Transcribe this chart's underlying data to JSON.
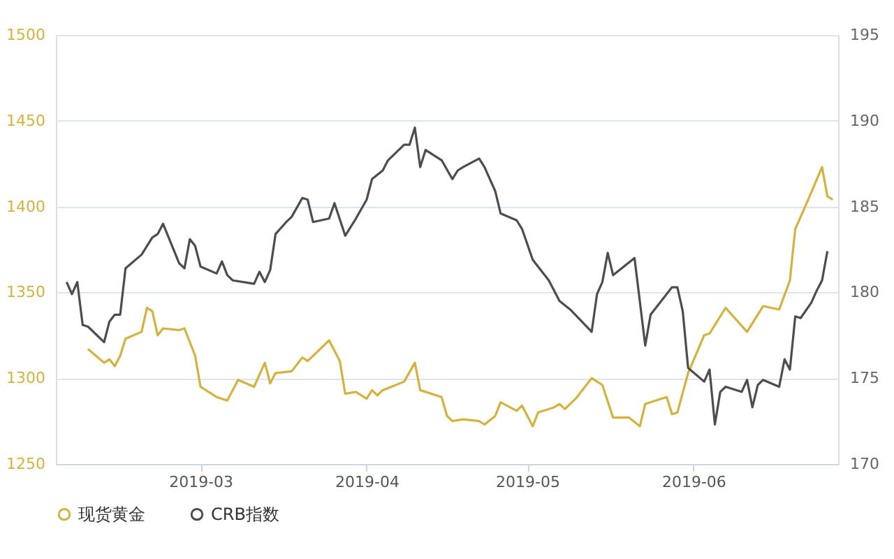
{
  "chart_data": {
    "type": "line",
    "legend": "bottom",
    "grid": "y",
    "marker": "none",
    "line_style": "solid",
    "xlim": [
      "2019-02-02",
      "2019-06-28"
    ],
    "xticks": [
      "2019-03",
      "2019-04",
      "2019-05",
      "2019-06"
    ],
    "ylim": [
      1250,
      1500
    ],
    "yticks": [
      1250,
      1300,
      1350,
      1400,
      1450,
      1500
    ],
    "y2lim": [
      170,
      195
    ],
    "y2ticks": [
      170,
      175,
      180,
      185,
      190,
      195
    ],
    "series": [
      {
        "name": "现货黄金",
        "color": "#d4b23c",
        "axis": "y",
        "x": [
          "2019-02-08",
          "2019-02-11",
          "2019-02-12",
          "2019-02-13",
          "2019-02-14",
          "2019-02-15",
          "2019-02-18",
          "2019-02-19",
          "2019-02-20",
          "2019-02-21",
          "2019-02-22",
          "2019-02-25",
          "2019-02-26",
          "2019-02-28",
          "2019-03-01",
          "2019-03-04",
          "2019-03-05",
          "2019-03-06",
          "2019-03-08",
          "2019-03-11",
          "2019-03-13",
          "2019-03-14",
          "2019-03-15",
          "2019-03-18",
          "2019-03-20",
          "2019-03-21",
          "2019-03-25",
          "2019-03-27",
          "2019-03-28",
          "2019-03-30",
          "2019-04-01",
          "2019-04-02",
          "2019-04-03",
          "2019-04-04",
          "2019-04-08",
          "2019-04-10",
          "2019-04-11",
          "2019-04-15",
          "2019-04-16",
          "2019-04-17",
          "2019-04-19",
          "2019-04-22",
          "2019-04-23",
          "2019-04-25",
          "2019-04-26",
          "2019-04-29",
          "2019-04-30",
          "2019-05-02",
          "2019-05-03",
          "2019-05-06",
          "2019-05-07",
          "2019-05-08",
          "2019-05-10",
          "2019-05-13",
          "2019-05-15",
          "2019-05-17",
          "2019-05-20",
          "2019-05-22",
          "2019-05-23",
          "2019-05-27",
          "2019-05-28",
          "2019-05-29",
          "2019-05-31",
          "2019-06-03",
          "2019-06-04",
          "2019-06-07",
          "2019-06-11",
          "2019-06-14",
          "2019-06-17",
          "2019-06-19",
          "2019-06-20",
          "2019-06-22",
          "2019-06-25",
          "2019-06-26",
          "2019-06-27"
        ],
        "values": [
          1317,
          1309,
          1311,
          1307,
          1313,
          1323,
          1327,
          1341,
          1339,
          1325,
          1329,
          1328,
          1329,
          1313,
          1295,
          1289,
          1288,
          1287,
          1299,
          1295,
          1309,
          1297,
          1303,
          1304,
          1312,
          1310,
          1322,
          1310,
          1291,
          1292,
          1288,
          1293,
          1290,
          1293,
          1298,
          1309,
          1293,
          1289,
          1278,
          1275,
          1276,
          1275,
          1273,
          1278,
          1286,
          1281,
          1284,
          1272,
          1280,
          1283,
          1285,
          1282,
          1288,
          1300,
          1296,
          1277,
          1277,
          1272,
          1285,
          1289,
          1279,
          1280,
          1303,
          1325,
          1326,
          1341,
          1327,
          1342,
          1340,
          1357,
          1387,
          1401,
          1423,
          1406,
          1404
        ]
      },
      {
        "name": "CRB指数",
        "color": "#4d4d4d",
        "axis": "y2",
        "x": [
          "2019-02-04",
          "2019-02-05",
          "2019-02-06",
          "2019-02-07",
          "2019-02-08",
          "2019-02-11",
          "2019-02-12",
          "2019-02-13",
          "2019-02-14",
          "2019-02-15",
          "2019-02-18",
          "2019-02-20",
          "2019-02-21",
          "2019-02-22",
          "2019-02-25",
          "2019-02-26",
          "2019-02-27",
          "2019-02-28",
          "2019-03-01",
          "2019-03-04",
          "2019-03-05",
          "2019-03-06",
          "2019-03-07",
          "2019-03-11",
          "2019-03-12",
          "2019-03-13",
          "2019-03-14",
          "2019-03-15",
          "2019-03-17",
          "2019-03-18",
          "2019-03-20",
          "2019-03-21",
          "2019-03-22",
          "2019-03-25",
          "2019-03-26",
          "2019-03-28",
          "2019-03-30",
          "2019-04-01",
          "2019-04-02",
          "2019-04-04",
          "2019-04-05",
          "2019-04-08",
          "2019-04-09",
          "2019-04-10",
          "2019-04-11",
          "2019-04-12",
          "2019-04-15",
          "2019-04-17",
          "2019-04-18",
          "2019-04-19",
          "2019-04-22",
          "2019-04-23",
          "2019-04-25",
          "2019-04-26",
          "2019-04-29",
          "2019-04-30",
          "2019-05-02",
          "2019-05-05",
          "2019-05-07",
          "2019-05-09",
          "2019-05-13",
          "2019-05-14",
          "2019-05-15",
          "2019-05-16",
          "2019-05-17",
          "2019-05-21",
          "2019-05-23",
          "2019-05-24",
          "2019-05-28",
          "2019-05-29",
          "2019-05-30",
          "2019-05-31",
          "2019-06-03",
          "2019-06-04",
          "2019-06-05",
          "2019-06-06",
          "2019-06-07",
          "2019-06-10",
          "2019-06-11",
          "2019-06-12",
          "2019-06-13",
          "2019-06-14",
          "2019-06-17",
          "2019-06-18",
          "2019-06-19",
          "2019-06-20",
          "2019-06-21",
          "2019-06-23",
          "2019-06-24",
          "2019-06-25",
          "2019-06-26"
        ],
        "values": [
          180.6,
          179.9,
          180.6,
          178.1,
          178.0,
          177.1,
          178.3,
          178.7,
          178.7,
          181.4,
          182.2,
          183.2,
          183.4,
          184.0,
          181.7,
          181.4,
          183.1,
          182.7,
          181.5,
          181.1,
          181.8,
          181.0,
          180.7,
          180.5,
          181.2,
          180.6,
          181.3,
          183.4,
          184.1,
          184.4,
          185.5,
          185.4,
          184.1,
          184.3,
          185.2,
          183.3,
          184.3,
          185.4,
          186.6,
          187.1,
          187.7,
          188.6,
          188.6,
          189.6,
          187.3,
          188.3,
          187.7,
          186.6,
          187.1,
          187.3,
          187.8,
          187.3,
          185.9,
          184.6,
          184.2,
          183.7,
          181.9,
          180.7,
          179.5,
          179.0,
          177.7,
          179.9,
          180.6,
          182.3,
          181.0,
          182.0,
          176.9,
          178.7,
          180.3,
          180.3,
          178.9,
          175.6,
          174.8,
          175.5,
          172.3,
          174.2,
          174.5,
          174.2,
          174.9,
          173.3,
          174.6,
          174.9,
          174.5,
          176.1,
          175.5,
          178.6,
          178.5,
          179.4,
          180.1,
          180.7,
          182.4
        ]
      }
    ]
  }
}
